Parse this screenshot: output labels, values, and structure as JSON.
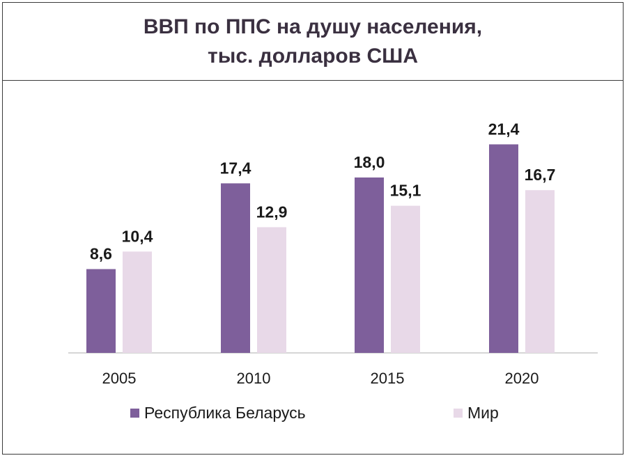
{
  "chart_data": {
    "type": "bar",
    "title": "ВВП по ППС на душу населения,",
    "subtitle": "тыс. долларов США",
    "categories": [
      "2005",
      "2010",
      "2015",
      "2020"
    ],
    "series": [
      {
        "name": "Республика Беларусь",
        "color": "#7e5f9b",
        "values": [
          8.6,
          17.4,
          18.0,
          21.4
        ],
        "labels": [
          "8,6",
          "17,4",
          "18,0",
          "21,4"
        ]
      },
      {
        "name": "Мир",
        "color": "#e8d9e8",
        "values": [
          10.4,
          12.9,
          15.1,
          16.7
        ],
        "labels": [
          "10,4",
          "12,9",
          "15,1",
          "16,7"
        ]
      }
    ],
    "ylim": [
      0,
      25
    ],
    "grid": false,
    "legend_position": "bottom"
  }
}
